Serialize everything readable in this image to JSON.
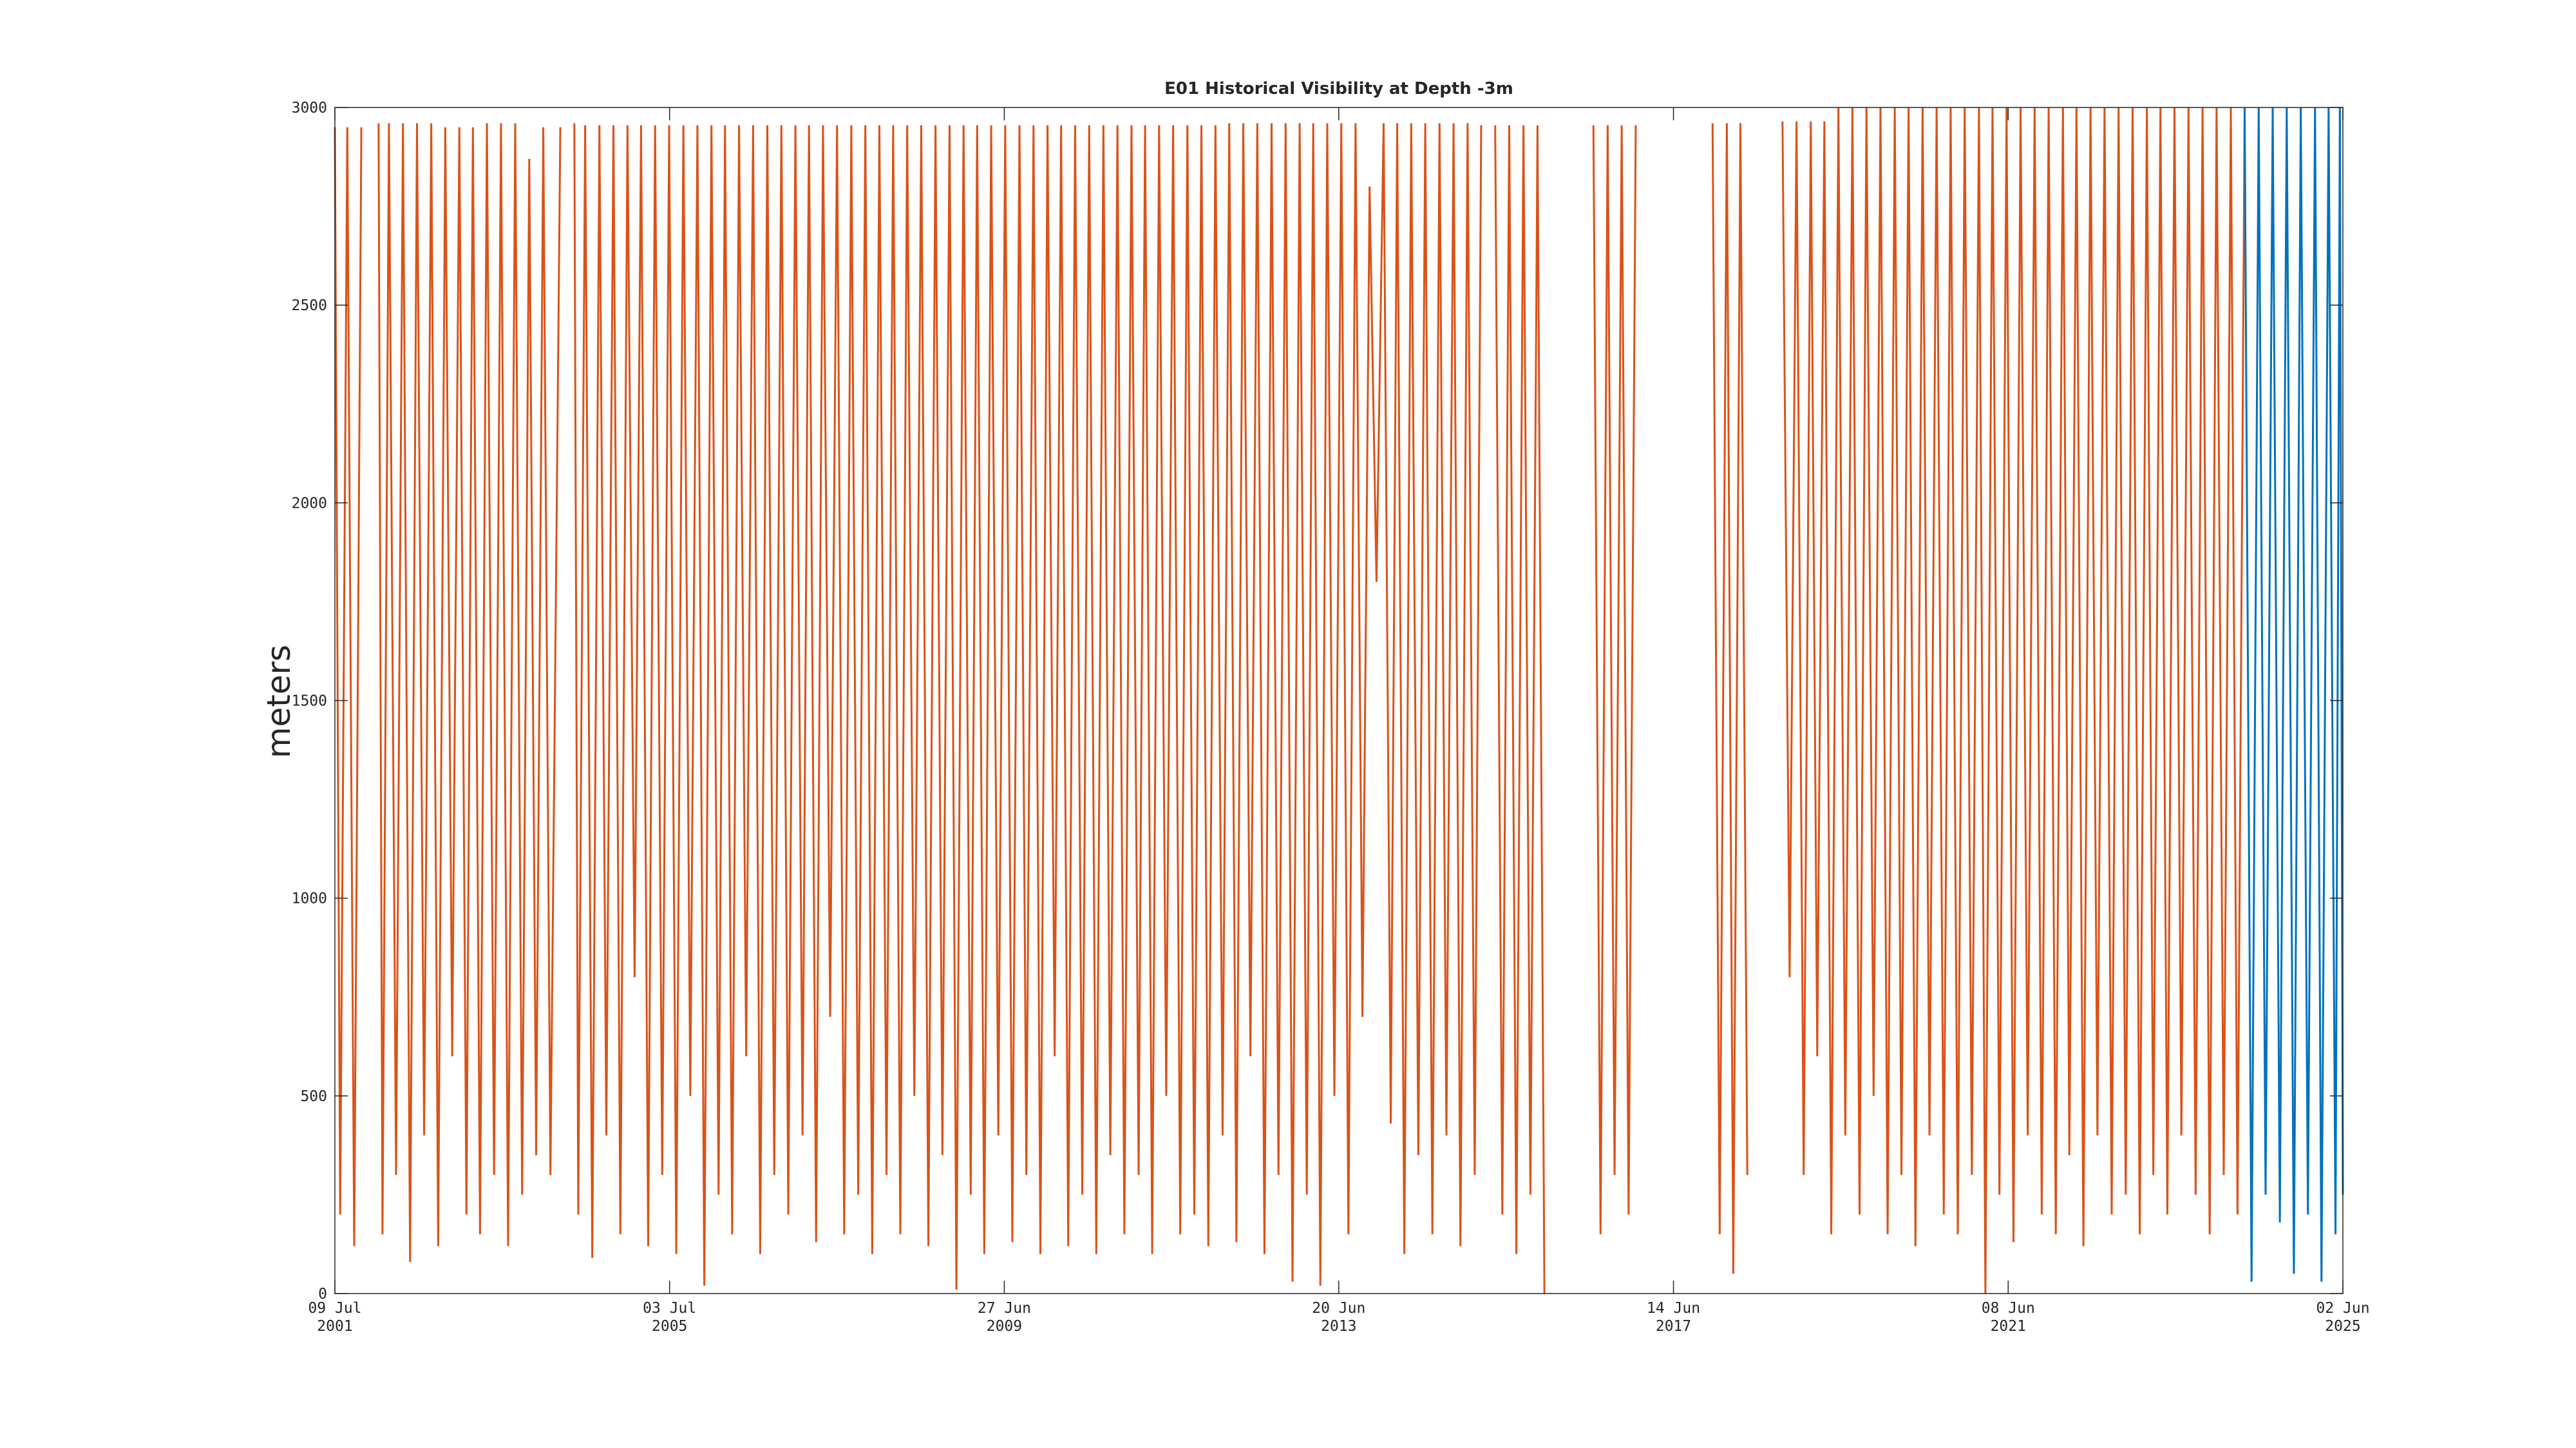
{
  "chart_data": {
    "type": "line",
    "title": "E01 Historical Visibility at Depth -3m",
    "ylabel": "meters",
    "ylim": [
      0,
      3000
    ],
    "yticks": [
      0,
      500,
      1000,
      1500,
      2000,
      2500,
      3000
    ],
    "xlim": [
      "2001-07-09",
      "2025-06-02"
    ],
    "xticks": [
      {
        "value": "2001-07-09",
        "label": [
          "09 Jul",
          "2001"
        ]
      },
      {
        "value": "2005-07-03",
        "label": [
          "03 Jul",
          "2005"
        ]
      },
      {
        "value": "2009-06-27",
        "label": [
          "27 Jun",
          "2009"
        ]
      },
      {
        "value": "2013-06-20",
        "label": [
          "20 Jun",
          "2013"
        ]
      },
      {
        "value": "2017-06-14",
        "label": [
          "14 Jun",
          "2017"
        ]
      },
      {
        "value": "2021-06-08",
        "label": [
          "08 Jun",
          "2021"
        ]
      },
      {
        "value": "2025-06-02",
        "label": [
          "02 Jun",
          "2025"
        ]
      }
    ],
    "grid": false,
    "series": [
      {
        "color": "#d95319",
        "x": [
          "2001-07-09",
          "2001-08-01",
          "2001-09-01",
          "2001-10-01",
          "2001-11-01",
          "2001-12-01",
          "2002-01-15",
          "2002-02-01",
          "2002-03-01",
          "2002-04-01",
          "2002-05-01",
          "2002-06-01",
          "2002-07-01",
          "2002-08-01",
          "2002-09-01",
          "2002-10-01",
          "2002-11-01",
          "2002-12-01",
          "2003-01-01",
          "2003-02-01",
          "2003-03-01",
          "2003-04-01",
          "2003-05-01",
          "2003-06-01",
          "2003-07-01",
          "2003-08-01",
          "2003-09-01",
          "2003-10-01",
          "2003-11-01",
          "2003-12-01",
          "2004-01-01",
          "2004-02-01",
          "2004-03-15",
          "2004-04-15",
          "2004-05-15",
          "2004-06-01",
          "2004-07-01",
          "2004-08-01",
          "2004-09-01",
          "2004-10-01",
          "2004-11-01",
          "2004-12-01",
          "2005-01-01",
          "2005-02-01",
          "2005-03-01",
          "2005-04-01",
          "2005-05-01",
          "2005-06-01",
          "2005-07-01",
          "2005-08-01",
          "2005-09-01",
          "2005-10-01",
          "2005-11-01",
          "2005-12-01",
          "2006-01-01",
          "2006-02-01",
          "2006-03-01",
          "2006-04-01",
          "2006-05-01",
          "2006-06-01",
          "2006-07-01",
          "2006-08-01",
          "2006-09-01",
          "2006-10-01",
          "2006-11-01",
          "2006-12-01",
          "2007-01-01",
          "2007-02-01",
          "2007-03-01",
          "2007-04-01",
          "2007-05-01",
          "2007-06-01",
          "2007-07-01",
          "2007-08-01",
          "2007-09-01",
          "2007-10-01",
          "2007-11-01",
          "2007-12-01",
          "2008-01-01",
          "2008-02-01",
          "2008-03-01",
          "2008-04-01",
          "2008-05-01",
          "2008-06-01",
          "2008-07-01",
          "2008-08-01",
          "2008-09-01",
          "2008-10-01",
          "2008-11-01",
          "2008-12-01",
          "2009-01-01",
          "2009-02-01",
          "2009-03-01",
          "2009-04-01",
          "2009-05-01",
          "2009-06-01",
          "2009-07-01",
          "2009-08-01",
          "2009-09-01",
          "2009-10-01",
          "2009-11-01",
          "2009-12-01",
          "2010-01-01",
          "2010-02-01",
          "2010-03-01",
          "2010-04-01",
          "2010-05-01",
          "2010-06-01",
          "2010-07-01",
          "2010-08-01",
          "2010-09-01",
          "2010-10-01",
          "2010-11-01",
          "2010-12-01",
          "2011-01-01",
          "2011-02-01",
          "2011-03-01",
          "2011-04-01",
          "2011-05-01",
          "2011-06-01",
          "2011-07-01",
          "2011-08-01",
          "2011-09-01",
          "2011-10-01",
          "2011-11-01",
          "2011-12-01",
          "2012-01-01",
          "2012-02-01",
          "2012-03-01",
          "2012-04-01",
          "2012-05-01",
          "2012-06-01",
          "2012-07-01",
          "2012-08-01",
          "2012-09-01",
          "2012-10-01",
          "2012-11-01",
          "2012-12-01",
          "2013-01-01",
          "2013-02-01",
          "2013-03-01",
          "2013-04-01",
          "2013-05-01",
          "2013-06-01",
          "2013-07-01",
          "2013-08-01",
          "2013-09-01",
          "2013-10-01",
          "2013-11-01",
          "2013-12-01",
          "2014-01-01",
          "2014-02-01",
          "2014-03-01",
          "2014-04-01",
          "2014-05-01",
          "2014-06-01",
          "2014-07-01",
          "2014-08-01",
          "2014-09-01",
          "2014-10-01",
          "2014-11-01",
          "2014-12-01",
          "2015-01-01",
          "2015-02-01",
          "2015-03-01",
          "2015-04-01",
          "2015-05-01",
          "2015-06-01",
          "2015-07-01",
          "2015-08-01",
          "2015-09-01",
          "2015-10-01",
          "2015-11-01",
          "2015-12-01",
          "2016-01-15",
          "2016-07-01",
          "2016-08-01",
          "2016-09-01",
          "2016-10-01",
          "2016-11-01",
          "2016-12-01",
          "2017-01-01",
          "2017-02-01",
          "2017-12-01",
          "2018-01-01",
          "2018-02-01",
          "2018-03-01",
          "2018-04-01",
          "2018-05-01",
          "2018-06-01",
          "2018-10-01",
          "2018-11-01",
          "2018-12-01",
          "2019-01-01",
          "2019-02-01",
          "2019-03-01",
          "2019-04-01",
          "2019-05-01",
          "2019-06-01",
          "2019-07-01",
          "2019-08-01",
          "2019-09-01",
          "2019-10-01",
          "2019-11-01",
          "2019-12-01",
          "2020-01-01",
          "2020-02-01",
          "2020-03-01",
          "2020-04-01",
          "2020-05-01",
          "2020-06-01",
          "2020-07-01",
          "2020-08-01",
          "2020-09-01",
          "2020-10-01",
          "2020-11-01",
          "2020-12-01",
          "2021-01-01",
          "2021-02-01",
          "2021-03-01",
          "2021-04-01",
          "2021-05-01",
          "2021-06-01",
          "2021-07-01",
          "2021-08-01",
          "2021-09-01",
          "2021-10-01",
          "2021-11-01",
          "2021-12-01",
          "2022-01-01",
          "2022-02-01",
          "2022-03-01",
          "2022-04-01",
          "2022-05-01",
          "2022-06-01",
          "2022-07-01",
          "2022-08-01",
          "2022-09-01",
          "2022-10-01",
          "2022-11-01",
          "2022-12-01",
          "2023-01-01",
          "2023-02-01",
          "2023-03-01",
          "2023-04-01",
          "2023-05-01",
          "2023-06-01",
          "2023-07-01",
          "2023-08-01",
          "2023-09-01",
          "2023-10-01",
          "2023-11-01",
          "2023-12-01",
          "2024-01-01",
          "2024-02-01",
          "2024-03-01",
          "2024-04-01"
        ],
        "values": [
          2950,
          200,
          2950,
          120,
          2950,
          null,
          2960,
          150,
          2960,
          300,
          2960,
          80,
          2960,
          400,
          2960,
          120,
          2950,
          600,
          2950,
          200,
          2950,
          150,
          2960,
          300,
          2960,
          120,
          2960,
          250,
          2870,
          350,
          2950,
          300,
          2950,
          null,
          2960,
          200,
          2955,
          90,
          2955,
          400,
          2955,
          150,
          2955,
          800,
          2955,
          120,
          2955,
          300,
          2955,
          100,
          2955,
          500,
          2955,
          20,
          2955,
          250,
          2955,
          150,
          2955,
          600,
          2955,
          100,
          2955,
          300,
          2955,
          200,
          2955,
          400,
          2955,
          130,
          2955,
          700,
          2955,
          150,
          2955,
          250,
          2955,
          100,
          2955,
          300,
          2955,
          150,
          2955,
          500,
          2955,
          120,
          2955,
          350,
          2955,
          10,
          2955,
          250,
          2955,
          100,
          2955,
          400,
          2955,
          130,
          2955,
          300,
          2955,
          100,
          2955,
          600,
          2955,
          120,
          2955,
          250,
          2955,
          100,
          2955,
          350,
          2955,
          150,
          2955,
          300,
          2955,
          100,
          2955,
          500,
          2955,
          150,
          2955,
          200,
          2955,
          120,
          2955,
          400,
          2960,
          130,
          2960,
          600,
          2960,
          100,
          2960,
          300,
          2960,
          30,
          2960,
          250,
          2960,
          20,
          2960,
          500,
          2960,
          150,
          2960,
          700,
          2800,
          1800,
          2960,
          430,
          2960,
          100,
          2960,
          350,
          2960,
          150,
          2960,
          400,
          2960,
          120,
          2960,
          300,
          2955,
          null,
          2955,
          200,
          2955,
          100,
          2955,
          250,
          2955,
          0,
          null,
          2955,
          150,
          2955,
          300,
          2955,
          200,
          2955,
          null,
          2960,
          150,
          2960,
          50,
          2960,
          300,
          null,
          2965,
          800,
          2965,
          300,
          2965,
          600,
          2965,
          150,
          3000,
          400,
          3000,
          200,
          3000,
          500,
          3000,
          150,
          3000,
          300,
          3000,
          120,
          3000,
          400,
          3000,
          200,
          3000,
          150,
          3000,
          300,
          3000,
          0,
          3000,
          250,
          3000,
          130,
          3000,
          400,
          3000,
          200,
          3000,
          150,
          3000,
          350,
          3000,
          120,
          3000,
          400,
          3000,
          200,
          3000,
          250,
          3000,
          150,
          3000,
          300,
          3000,
          200,
          3000,
          400,
          3000,
          250,
          3000,
          150,
          3000,
          300,
          3000,
          200,
          3000
        ]
      },
      {
        "color": "#0072bd",
        "x": [
          "2024-04-01",
          "2024-05-01",
          "2024-06-01",
          "2024-07-01",
          "2024-08-01",
          "2024-09-01",
          "2024-10-01",
          "2024-11-01",
          "2024-12-01",
          "2025-01-01",
          "2025-02-01",
          "2025-03-01",
          "2025-04-01",
          "2025-05-01",
          "2025-05-20",
          "2025-06-02"
        ],
        "values": [
          3000,
          30,
          3000,
          250,
          3000,
          180,
          3000,
          50,
          3000,
          200,
          3000,
          30,
          3000,
          150,
          3000,
          250
        ]
      }
    ]
  }
}
